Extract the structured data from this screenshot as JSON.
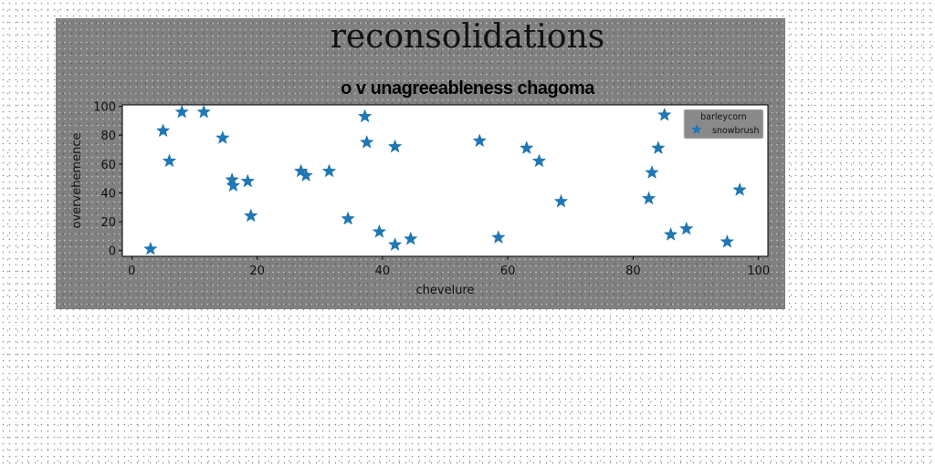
{
  "figure": {
    "super_title": "reconsolidations"
  },
  "chart_data": {
    "type": "scatter",
    "title": "o v unagreeableness chagoma",
    "xlabel": "chevelure",
    "ylabel": "overvehemence",
    "xlim": [
      -1.5,
      101.5
    ],
    "ylim": [
      -4,
      101
    ],
    "x_ticks": [
      0,
      20,
      40,
      60,
      80,
      100
    ],
    "y_ticks": [
      0,
      20,
      40,
      60,
      80,
      100
    ],
    "grid": false,
    "legend": {
      "title": "barleycorn",
      "placement": "top-right"
    },
    "series": [
      {
        "name": "snowbrush",
        "color": "#1f77b4",
        "marker": "star",
        "points": [
          [
            3,
            1
          ],
          [
            5,
            83
          ],
          [
            6,
            62
          ],
          [
            8,
            96
          ],
          [
            11.5,
            96
          ],
          [
            14.5,
            78
          ],
          [
            16,
            49
          ],
          [
            16.2,
            45
          ],
          [
            18.5,
            48
          ],
          [
            19,
            24
          ],
          [
            27,
            55
          ],
          [
            27.8,
            52
          ],
          [
            31.5,
            55
          ],
          [
            34.5,
            22
          ],
          [
            37.2,
            93
          ],
          [
            37.5,
            75
          ],
          [
            39.5,
            13
          ],
          [
            42,
            72
          ],
          [
            42,
            4
          ],
          [
            44.5,
            8
          ],
          [
            55.5,
            76
          ],
          [
            58.5,
            9
          ],
          [
            63,
            71
          ],
          [
            65,
            62
          ],
          [
            68.5,
            34
          ],
          [
            82.5,
            36
          ],
          [
            83,
            54
          ],
          [
            84,
            71
          ],
          [
            85,
            94
          ],
          [
            86,
            11
          ],
          [
            88.5,
            15
          ],
          [
            95,
            6
          ],
          [
            97,
            42
          ]
        ]
      }
    ]
  }
}
